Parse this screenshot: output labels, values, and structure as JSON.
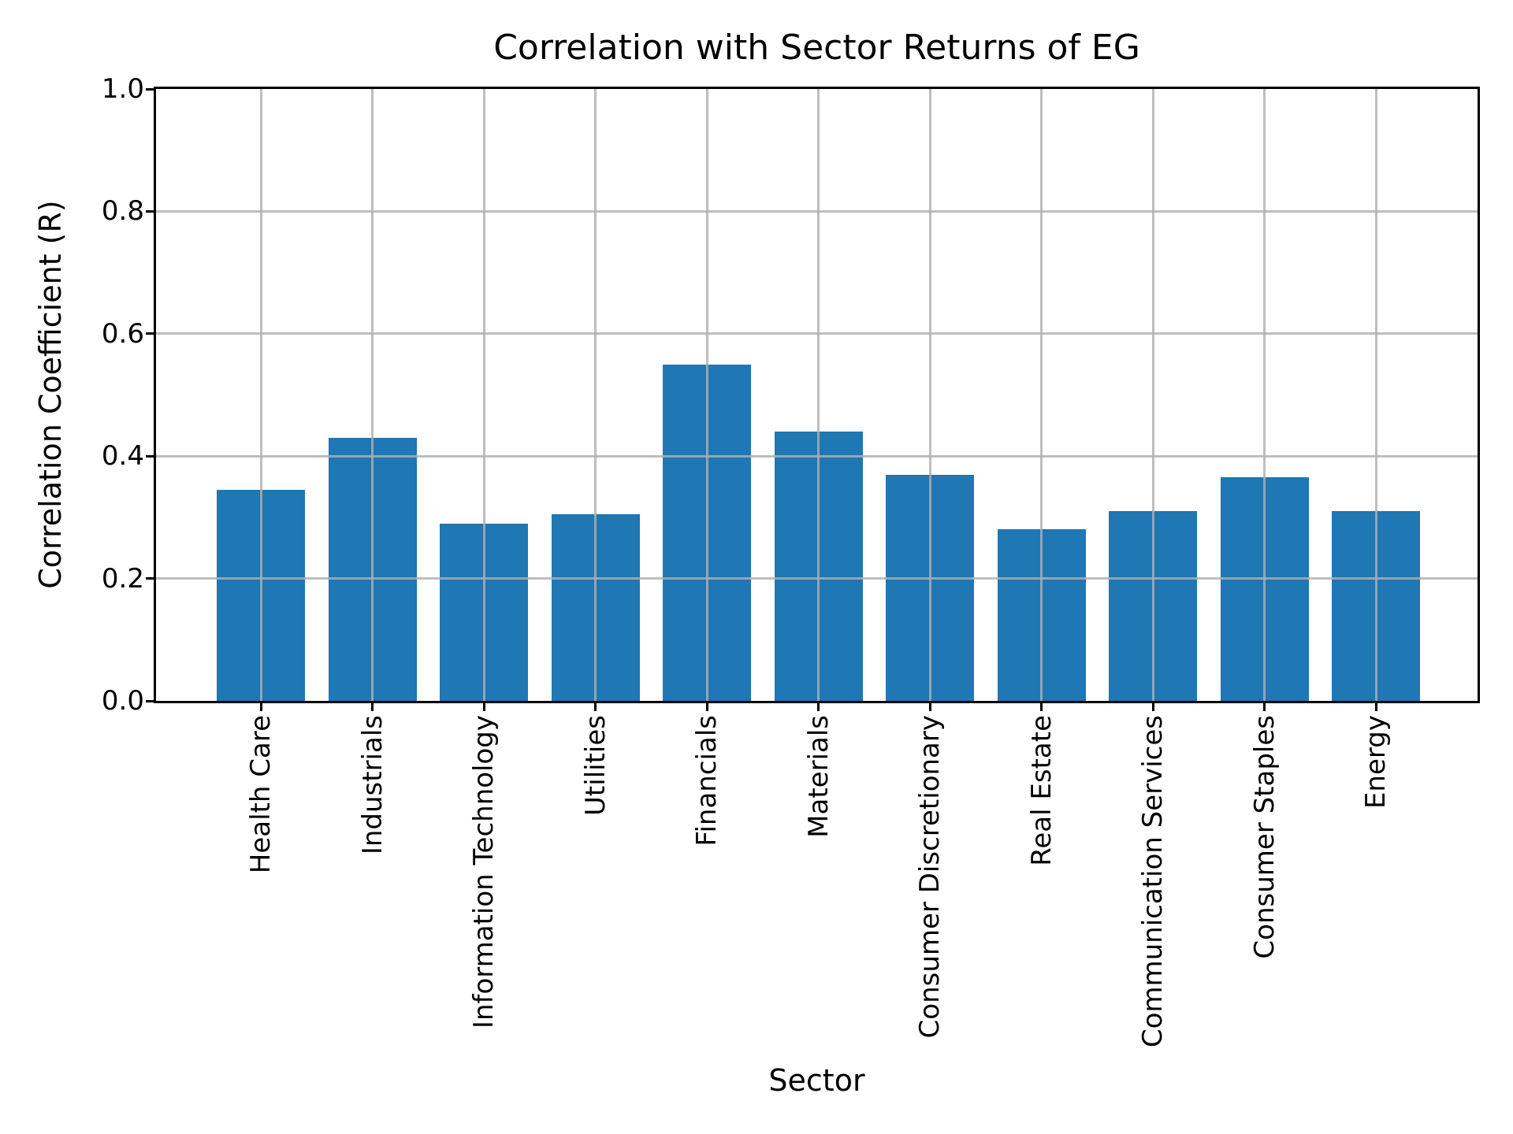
{
  "chart_data": {
    "type": "bar",
    "title": "Correlation with Sector Returns of EG",
    "xlabel": "Sector",
    "ylabel": "Correlation Coefficient (R)",
    "categories": [
      "Health Care",
      "Industrials",
      "Information Technology",
      "Utilities",
      "Financials",
      "Materials",
      "Consumer Discretionary",
      "Real Estate",
      "Communication Services",
      "Consumer Staples",
      "Energy"
    ],
    "values": [
      0.345,
      0.43,
      0.29,
      0.305,
      0.55,
      0.44,
      0.37,
      0.28,
      0.31,
      0.365,
      0.31
    ],
    "ylim": [
      0.0,
      1.0
    ],
    "yticks": [
      0.0,
      0.2,
      0.4,
      0.6,
      0.8,
      1.0
    ],
    "ytick_labels": [
      "0.0",
      "0.2",
      "0.4",
      "0.6",
      "0.8",
      "1.0"
    ],
    "grid": true,
    "legend": false,
    "bar_color": "#1f77b4",
    "grid_color": "#b0b0b0",
    "axis_color": "#000000",
    "background_color": "#ffffff",
    "x_tick_rotation_deg": 90
  }
}
